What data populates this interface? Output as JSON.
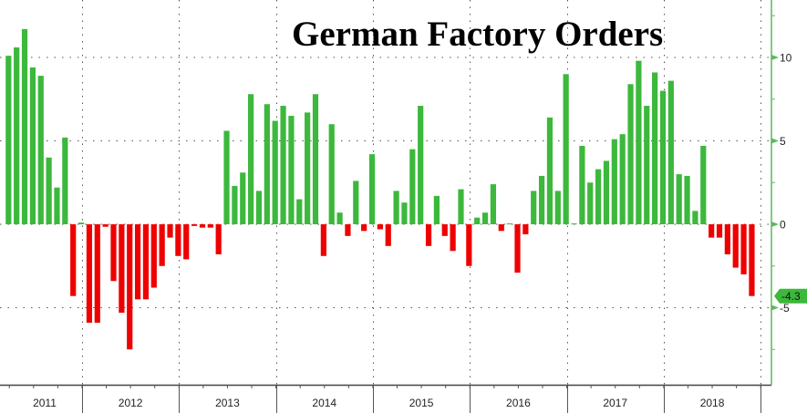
{
  "chart_data": {
    "type": "bar",
    "title": "German Factory Orders",
    "xlabel": "",
    "ylabel": "",
    "ylim": [
      -9.5,
      13.5
    ],
    "grid": true,
    "y_axis_side": "right",
    "yticks": [
      10,
      5,
      0,
      -5
    ],
    "ytick_labels": [
      "10",
      "5",
      "0",
      "-5"
    ],
    "x_tick_labels": [
      "2011",
      "2012",
      "2013",
      "2014",
      "2015",
      "2016",
      "2017",
      "2018"
    ],
    "start": "2011-03",
    "frequency": "monthly",
    "values": [
      10.1,
      10.6,
      11.7,
      9.4,
      8.9,
      4.0,
      2.2,
      5.2,
      -4.3,
      0.1,
      -5.9,
      -5.9,
      -0.15,
      -3.4,
      -5.3,
      -7.5,
      -4.5,
      -4.5,
      -3.8,
      -2.5,
      -0.8,
      -1.9,
      -2.1,
      -0.1,
      -0.2,
      -0.2,
      -1.8,
      5.6,
      2.3,
      3.1,
      7.8,
      2.0,
      7.2,
      6.2,
      7.1,
      6.5,
      1.5,
      6.7,
      7.8,
      -1.9,
      6.0,
      0.7,
      -0.7,
      2.6,
      -0.4,
      4.2,
      -0.3,
      -1.3,
      2.0,
      1.3,
      4.5,
      7.1,
      -1.3,
      1.7,
      -0.7,
      -1.6,
      2.1,
      -2.5,
      0.4,
      0.7,
      2.4,
      -0.4,
      0.05,
      -2.9,
      -0.6,
      2.0,
      2.9,
      6.4,
      2.0,
      9.0,
      0.05,
      4.7,
      2.5,
      3.3,
      3.8,
      5.1,
      5.4,
      8.4,
      9.8,
      7.1,
      9.1,
      8.0,
      8.6,
      3.0,
      2.9,
      0.8,
      4.7,
      -0.8,
      -0.8,
      -1.8,
      -2.6,
      -3.0,
      -4.3
    ],
    "last_value_label": "-4.3",
    "colors": {
      "positive": "#3cb83c",
      "negative": "#ee0000",
      "axis": "#5cb85c",
      "last_label_bg": "#3cb83c"
    }
  }
}
